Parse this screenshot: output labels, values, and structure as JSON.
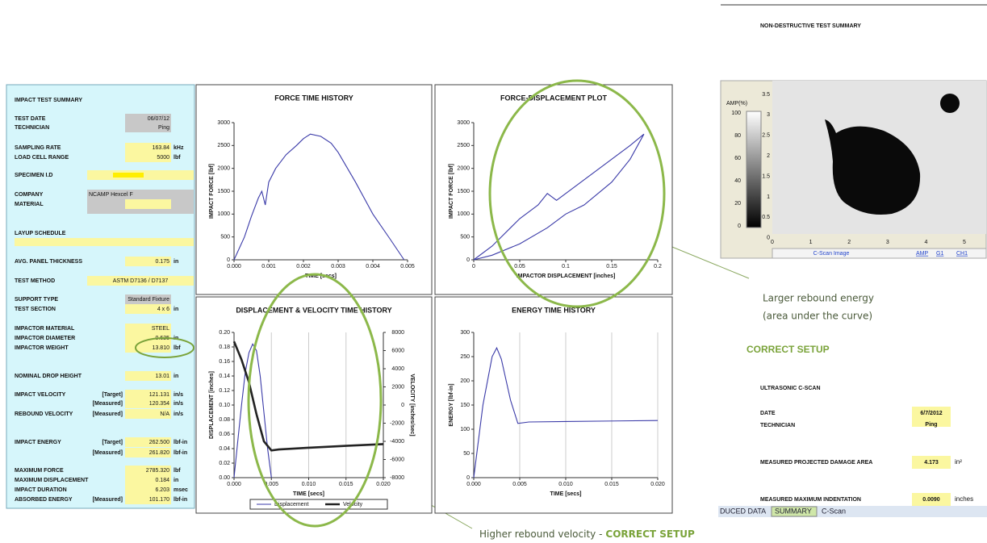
{
  "chart_data": [
    {
      "type": "line",
      "title": "FORCE TIME HISTORY",
      "xlabel": "TIME [secs]",
      "ylabel": "IMPACT FORCE [lbf]",
      "xlim": [
        0,
        0.005
      ],
      "ylim": [
        0,
        3000
      ],
      "xticks": [
        {
          "value": 0,
          "label": "0.000"
        },
        {
          "value": 0.001,
          "label": "0.001"
        },
        {
          "value": 0.002,
          "label": "0.002"
        },
        {
          "value": 0.003,
          "label": "0.003"
        },
        {
          "value": 0.004,
          "label": "0.004"
        },
        {
          "value": 0.005,
          "label": "0.005"
        }
      ],
      "yticks": [
        0,
        500,
        1000,
        1500,
        2000,
        2500,
        3000
      ],
      "grid": false,
      "series": [
        {
          "color": "#3a3aa8",
          "x": [
            0,
            0.0003,
            0.0005,
            0.0007,
            0.0008,
            0.0009,
            0.001,
            0.0012,
            0.0015,
            0.0018,
            0.002,
            0.0022,
            0.0025,
            0.0028,
            0.003,
            0.0035,
            0.004,
            0.0045,
            0.0049
          ],
          "values": [
            0,
            500,
            950,
            1350,
            1500,
            1200,
            1700,
            2000,
            2300,
            2500,
            2650,
            2750,
            2700,
            2550,
            2350,
            1700,
            1000,
            450,
            0
          ]
        }
      ]
    },
    {
      "type": "line",
      "title": "FORCE-DISPLACEMENT PLOT",
      "xlabel": "IMPACTOR DISPLACEMENT [inches]",
      "ylabel": "IMPACT FORCE [lbf]",
      "xlim": [
        0,
        0.2
      ],
      "ylim": [
        0,
        3000
      ],
      "xticks": [
        0,
        0.05,
        0.1,
        0.15,
        0.2
      ],
      "yticks": [
        0,
        500,
        1000,
        1500,
        2000,
        2500,
        3000
      ],
      "grid": false,
      "series": [
        {
          "color": "#3a3aa8",
          "x": [
            0,
            0.02,
            0.04,
            0.05,
            0.07,
            0.08,
            0.09,
            0.1,
            0.11,
            0.13,
            0.15,
            0.17,
            0.185,
            0.17,
            0.15,
            0.12,
            0.1,
            0.08,
            0.05,
            0.02,
            0
          ],
          "values": [
            0,
            300,
            700,
            900,
            1200,
            1450,
            1300,
            1450,
            1600,
            1900,
            2200,
            2500,
            2750,
            2200,
            1700,
            1200,
            1000,
            700,
            350,
            100,
            0
          ]
        }
      ]
    },
    {
      "type": "line",
      "title": "DISPLACEMENT & VELOCITY TIME HISTORY",
      "xlabel": "TIME [secs]",
      "ylabel": "DISPLACEMENT [inches]",
      "y2label": "VELOCITY [inches/sec]",
      "xlim": [
        0,
        0.02
      ],
      "ylim": [
        0,
        0.2
      ],
      "y2lim": [
        -8000,
        8000
      ],
      "xticks": [
        {
          "value": 0,
          "label": "0.000"
        },
        {
          "value": 0.005,
          "label": "0.005"
        },
        {
          "value": 0.01,
          "label": "0.010"
        },
        {
          "value": 0.015,
          "label": "0.015"
        },
        {
          "value": 0.02,
          "label": "0.020"
        }
      ],
      "yticks": [
        {
          "value": 0,
          "label": "0.00"
        },
        {
          "value": 0.02,
          "label": "0.02"
        },
        {
          "value": 0.04,
          "label": "0.04"
        },
        {
          "value": 0.06,
          "label": "0.06"
        },
        {
          "value": 0.08,
          "label": "0.08"
        },
        {
          "value": 0.1,
          "label": "0.10"
        },
        {
          "value": 0.12,
          "label": "0.12"
        },
        {
          "value": 0.14,
          "label": "0.14"
        },
        {
          "value": 0.16,
          "label": "0.16"
        },
        {
          "value": 0.18,
          "label": "0.18"
        },
        {
          "value": 0.2,
          "label": "0.20"
        }
      ],
      "y2ticks": [
        -8000,
        -6000,
        -4000,
        -2000,
        0,
        2000,
        4000,
        6000,
        8000
      ],
      "grid": true,
      "series": [
        {
          "name": "Displacement",
          "color": "#3a3aa8",
          "x": [
            0,
            0.0005,
            0.001,
            0.0015,
            0.002,
            0.0025,
            0.003,
            0.0035,
            0.004,
            0.0045,
            0.005
          ],
          "values": [
            0,
            0.05,
            0.1,
            0.145,
            0.172,
            0.184,
            0.175,
            0.14,
            0.09,
            0.04,
            0
          ]
        },
        {
          "name": "Velocity",
          "color": "#222222",
          "axis": "y2",
          "x": [
            0,
            0.001,
            0.002,
            0.003,
            0.004,
            0.005,
            0.006,
            0.01,
            0.015,
            0.02
          ],
          "values": [
            7000,
            5000,
            2500,
            -1000,
            -4000,
            -5000,
            -4900,
            -4700,
            -4500,
            -4300
          ]
        }
      ]
    },
    {
      "type": "line",
      "title": "ENERGY TIME HISTORY",
      "xlabel": "TIME [secs]",
      "ylabel": "ENERGY [lbf-in]",
      "xlim": [
        0,
        0.02
      ],
      "ylim": [
        0,
        300
      ],
      "xticks": [
        {
          "value": 0,
          "label": "0.000"
        },
        {
          "value": 0.005,
          "label": "0.005"
        },
        {
          "value": 0.01,
          "label": "0.010"
        },
        {
          "value": 0.015,
          "label": "0.015"
        },
        {
          "value": 0.02,
          "label": "0.020"
        }
      ],
      "yticks": [
        0,
        50,
        100,
        150,
        200,
        250,
        300
      ],
      "grid": true,
      "series": [
        {
          "color": "#3a3aa8",
          "x": [
            0,
            0.001,
            0.002,
            0.0025,
            0.003,
            0.004,
            0.0048,
            0.006,
            0.01,
            0.02
          ],
          "values": [
            0,
            150,
            250,
            268,
            245,
            160,
            112,
            115,
            116,
            118
          ]
        }
      ]
    }
  ],
  "impact_summary": {
    "title": "IMPACT TEST SUMMARY",
    "rows": [
      {
        "label": "TEST DATE",
        "value": "06/07/12"
      },
      {
        "label": "TECHNICIAN",
        "value": "Ping"
      },
      {
        "label": "SAMPLING RATE",
        "value": "163.84",
        "unit": "kHz"
      },
      {
        "label": "LOAD CELL RANGE",
        "value": "5000",
        "unit": "lbf"
      },
      {
        "label": "SPECIMEN I.D"
      },
      {
        "label": "COMPANY",
        "value": "NCAMP Hexcel F"
      },
      {
        "label": "MATERIAL"
      },
      {
        "label": "LAYUP SCHEDULE"
      },
      {
        "label": "AVG. PANEL THICKNESS",
        "value": "0.175",
        "unit": "in"
      },
      {
        "label": "TEST METHOD",
        "value": "ASTM D7136 / D7137"
      },
      {
        "label": "SUPPORT TYPE",
        "value": "Standard Fixture"
      },
      {
        "label": "TEST SECTION",
        "value": "4 x 6",
        "unit": "in"
      },
      {
        "label": "IMPACTOR MATERIAL",
        "value": "STEEL"
      },
      {
        "label": "IMPACTOR DIAMETER",
        "value": "0.625",
        "unit": "in"
      },
      {
        "label": "IMPACTOR WEIGHT",
        "value": "13.810",
        "unit": "lbf"
      },
      {
        "label": "NOMINAL DROP HEIGHT",
        "value": "13.01",
        "unit": "in"
      },
      {
        "label": "IMPACT VELOCITY",
        "qualifier": "[Target]",
        "value": "121.131",
        "unit": "in/s"
      },
      {
        "qualifier": "[Measured]",
        "value": "120.354",
        "unit": "in/s"
      },
      {
        "label": "REBOUND VELOCITY",
        "qualifier": "[Measured]",
        "value": "N/A",
        "unit": "in/s"
      },
      {
        "label": "IMPACT ENERGY",
        "qualifier": "[Target]",
        "value": "262.500",
        "unit": "lbf-in"
      },
      {
        "qualifier": "[Measured]",
        "value": "261.820",
        "unit": "lbf-in"
      },
      {
        "label": "MAXIMUM FORCE",
        "value": "2785.320",
        "unit": "lbf"
      },
      {
        "label": "MAXIMUM DISPLACEMENT",
        "value": "0.184",
        "unit": "in"
      },
      {
        "label": "IMPACT DURATION",
        "value": "6.203",
        "unit": "msec"
      },
      {
        "label": "ABSORBED ENERGY",
        "qualifier": "[Measured]",
        "value": "101.170",
        "unit": "lbf-in"
      }
    ]
  },
  "ndt_summary": {
    "title": "NON-DESTRUCTIVE TEST SUMMARY",
    "section": "ULTRASONIC C-SCAN",
    "rows": [
      {
        "label": "DATE",
        "value": "6/7/2012"
      },
      {
        "label": "TECHNICIAN",
        "value": "Ping"
      },
      {
        "label": "MEASURED PROJECTED DAMAGE AREA",
        "value": "4.173",
        "unit": "in²"
      },
      {
        "label": "MEASURED MAXIMUM INDENTATION",
        "value": "0.0090",
        "unit": "inches"
      }
    ]
  },
  "cscan": {
    "amp_label": "AMP(%)",
    "amp_ticks": [
      "100",
      "80",
      "60",
      "40",
      "20",
      "0"
    ],
    "y_ticks": [
      "3.5",
      "3",
      "2.5",
      "2",
      "1.5",
      "1",
      "0.5",
      "0"
    ],
    "x_ticks": [
      "0",
      "1",
      "2",
      "3",
      "4",
      "5"
    ],
    "caption": "C-Scan Image",
    "buttons": [
      "AMP",
      "G1",
      "CH1"
    ]
  },
  "annotations": {
    "rebound_energy": [
      "Larger rebound energy",
      "(area under the curve)"
    ],
    "correct_setup": "CORRECT SETUP",
    "rebound_velocity": {
      "text": "Higher rebound velocity -",
      "emphasis": "CORRECT SETUP"
    }
  },
  "tabs": [
    "DUCED DATA",
    "SUMMARY",
    "C-Scan"
  ]
}
